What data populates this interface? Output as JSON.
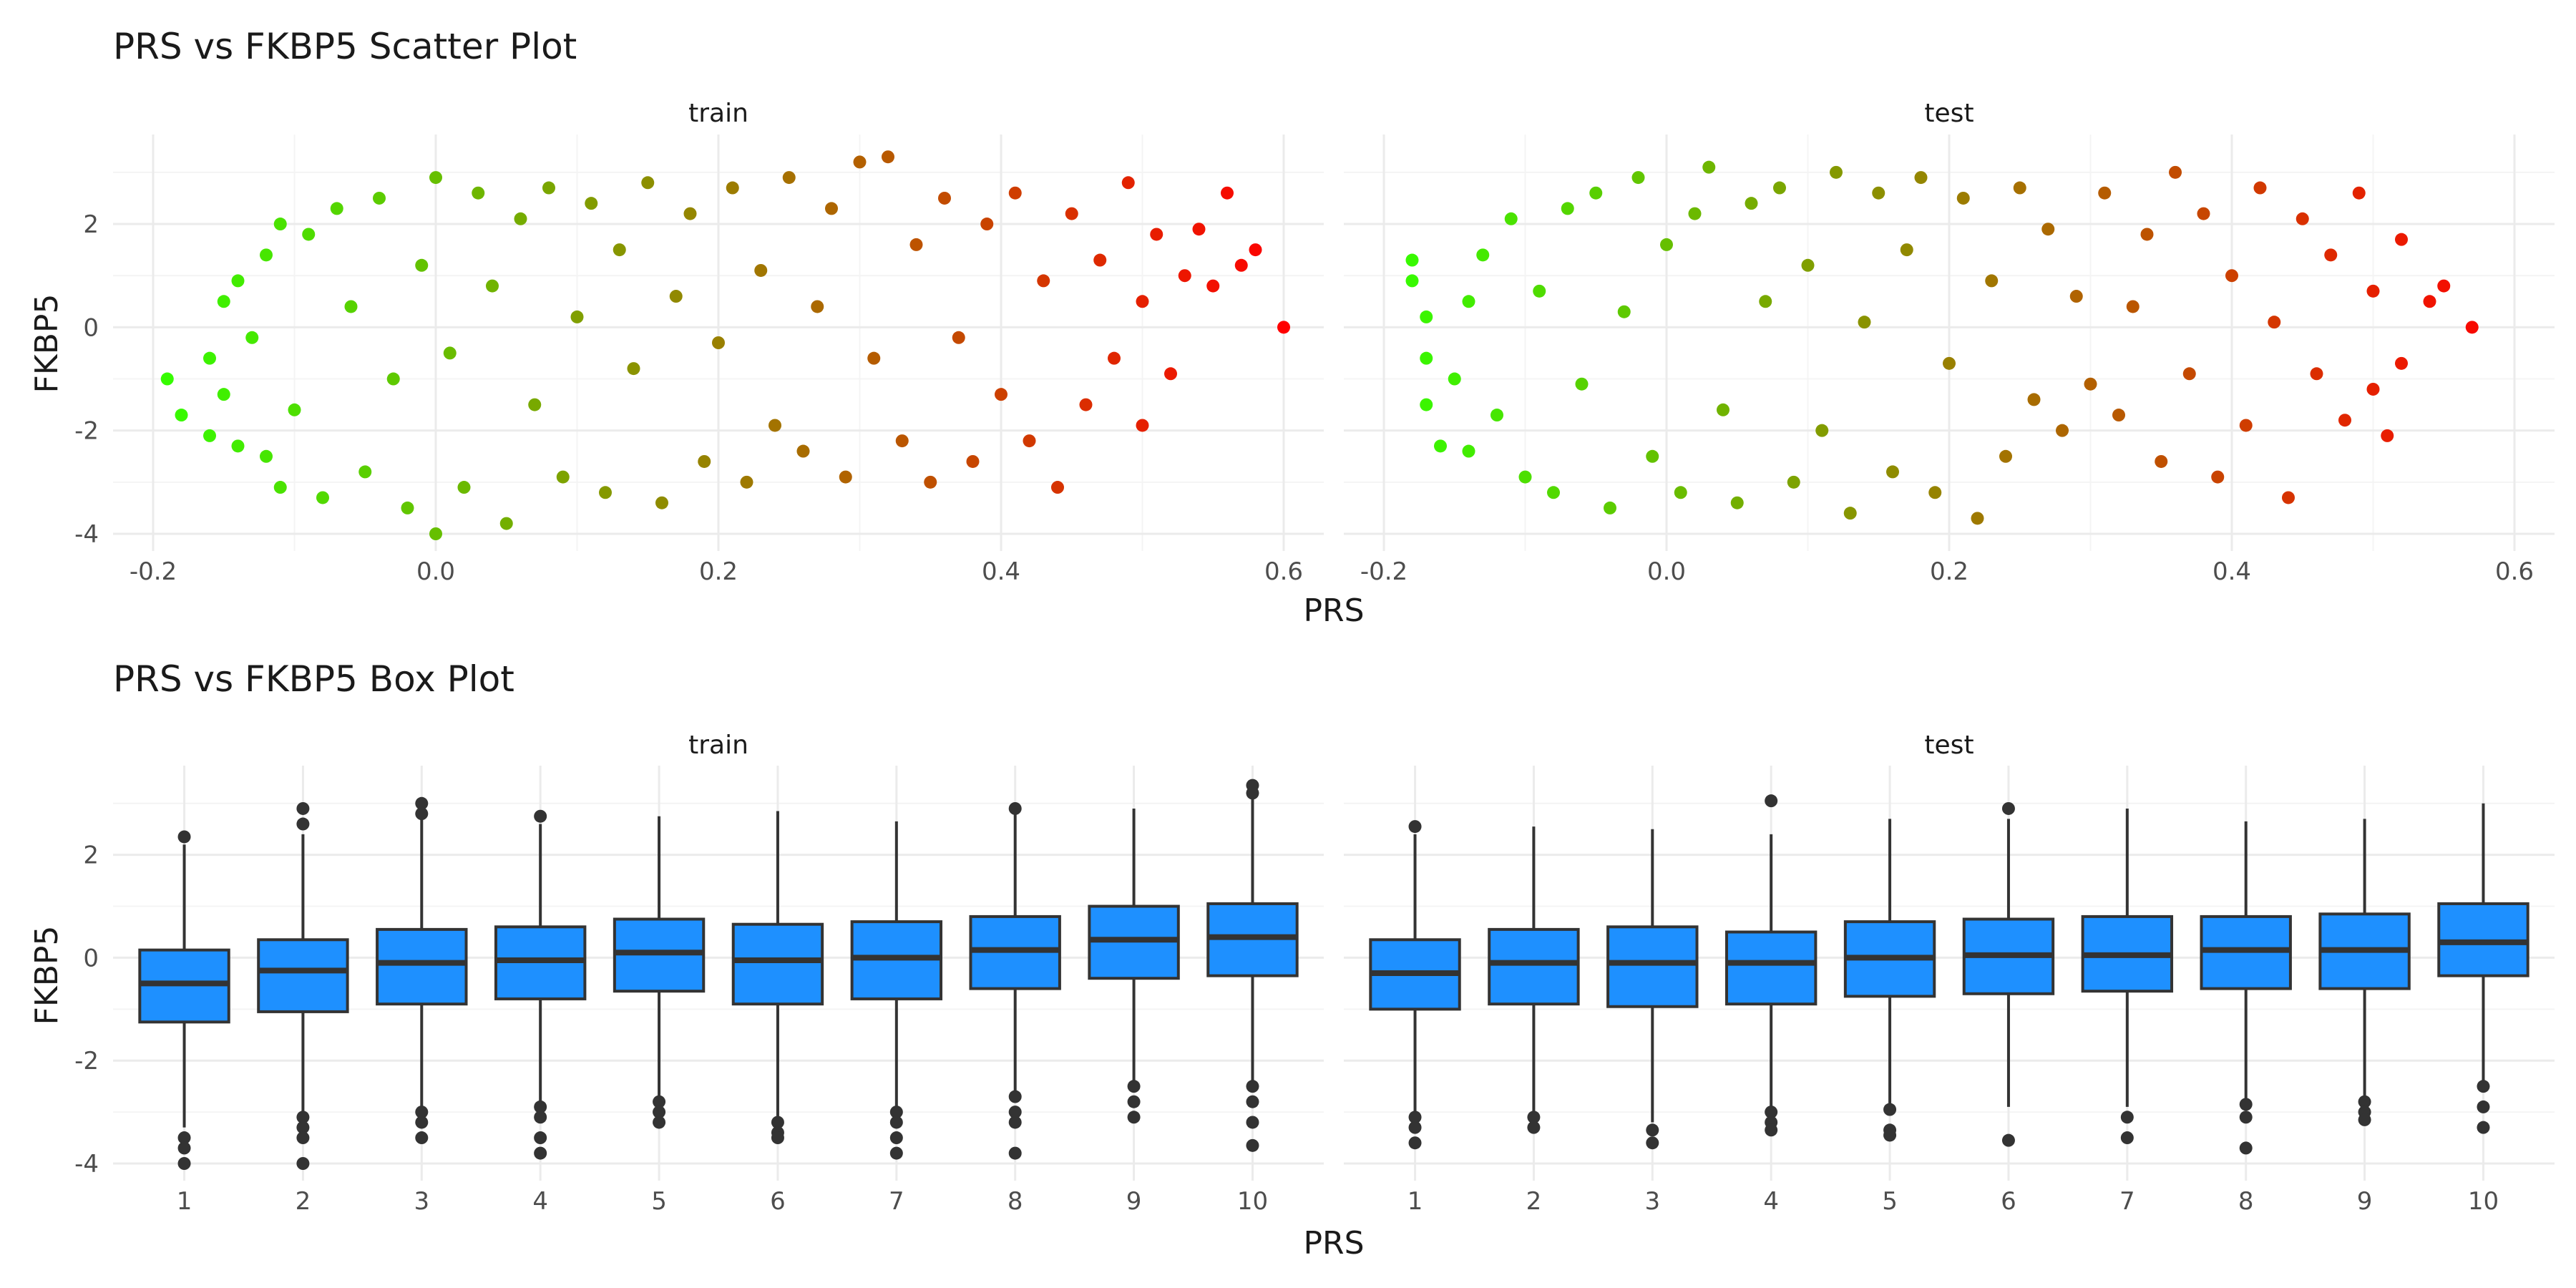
{
  "chart_data": [
    {
      "type": "scatter",
      "title": "PRS vs FKBP5 Scatter Plot",
      "xlabel": "PRS",
      "ylabel": "FKBP5",
      "xlim": [
        -0.2,
        0.6
      ],
      "ylim": [
        -4,
        3.4
      ],
      "xticks": [
        "-0.2",
        "0.0",
        "0.2",
        "0.4",
        "0.6"
      ],
      "yticks": [
        "-4",
        "-2",
        "0",
        "2"
      ],
      "grid": true,
      "color_gradient": [
        "#33ff00",
        "#ff0000"
      ],
      "facets": [
        {
          "name": "train",
          "points": [
            [
              -0.19,
              -1.0
            ],
            [
              -0.18,
              -1.7
            ],
            [
              -0.16,
              -0.6
            ],
            [
              -0.16,
              -2.1
            ],
            [
              -0.15,
              0.5
            ],
            [
              -0.15,
              -1.3
            ],
            [
              -0.14,
              0.9
            ],
            [
              -0.14,
              -2.3
            ],
            [
              -0.13,
              -0.2
            ],
            [
              -0.12,
              1.4
            ],
            [
              -0.12,
              -2.5
            ],
            [
              -0.11,
              2.0
            ],
            [
              -0.11,
              -3.1
            ],
            [
              -0.1,
              -1.6
            ],
            [
              -0.09,
              1.8
            ],
            [
              -0.08,
              -3.3
            ],
            [
              -0.07,
              2.3
            ],
            [
              -0.06,
              0.4
            ],
            [
              -0.05,
              -2.8
            ],
            [
              -0.04,
              2.5
            ],
            [
              -0.03,
              -1.0
            ],
            [
              -0.02,
              -3.5
            ],
            [
              -0.01,
              1.2
            ],
            [
              0.0,
              2.9
            ],
            [
              0.0,
              -4.0
            ],
            [
              0.01,
              -0.5
            ],
            [
              0.02,
              -3.1
            ],
            [
              0.03,
              2.6
            ],
            [
              0.04,
              0.8
            ],
            [
              0.05,
              -3.8
            ],
            [
              0.06,
              2.1
            ],
            [
              0.07,
              -1.5
            ],
            [
              0.08,
              2.7
            ],
            [
              0.09,
              -2.9
            ],
            [
              0.1,
              0.2
            ],
            [
              0.11,
              2.4
            ],
            [
              0.12,
              -3.2
            ],
            [
              0.13,
              1.5
            ],
            [
              0.14,
              -0.8
            ],
            [
              0.15,
              2.8
            ],
            [
              0.16,
              -3.4
            ],
            [
              0.17,
              0.6
            ],
            [
              0.18,
              2.2
            ],
            [
              0.19,
              -2.6
            ],
            [
              0.2,
              -0.3
            ],
            [
              0.21,
              2.7
            ],
            [
              0.22,
              -3.0
            ],
            [
              0.23,
              1.1
            ],
            [
              0.24,
              -1.9
            ],
            [
              0.25,
              2.9
            ],
            [
              0.26,
              -2.4
            ],
            [
              0.27,
              0.4
            ],
            [
              0.28,
              2.3
            ],
            [
              0.29,
              -2.9
            ],
            [
              0.3,
              3.2
            ],
            [
              0.31,
              -0.6
            ],
            [
              0.32,
              3.3
            ],
            [
              0.33,
              -2.2
            ],
            [
              0.34,
              1.6
            ],
            [
              0.35,
              -3.0
            ],
            [
              0.36,
              2.5
            ],
            [
              0.37,
              -0.2
            ],
            [
              0.38,
              -2.6
            ],
            [
              0.39,
              2.0
            ],
            [
              0.4,
              -1.3
            ],
            [
              0.41,
              2.6
            ],
            [
              0.42,
              -2.2
            ],
            [
              0.43,
              0.9
            ],
            [
              0.44,
              -3.1
            ],
            [
              0.45,
              2.2
            ],
            [
              0.46,
              -1.5
            ],
            [
              0.47,
              1.3
            ],
            [
              0.48,
              -0.6
            ],
            [
              0.49,
              2.8
            ],
            [
              0.5,
              -1.9
            ],
            [
              0.5,
              0.5
            ],
            [
              0.51,
              1.8
            ],
            [
              0.52,
              -0.9
            ],
            [
              0.53,
              1.0
            ],
            [
              0.54,
              1.9
            ],
            [
              0.55,
              0.8
            ],
            [
              0.56,
              2.6
            ],
            [
              0.57,
              1.2
            ],
            [
              0.58,
              1.5
            ],
            [
              0.6,
              0.0
            ]
          ]
        },
        {
          "name": "test",
          "points": [
            [
              -0.18,
              1.3
            ],
            [
              -0.18,
              0.9
            ],
            [
              -0.17,
              0.2
            ],
            [
              -0.17,
              -0.6
            ],
            [
              -0.17,
              -1.5
            ],
            [
              -0.16,
              -2.3
            ],
            [
              -0.15,
              -1.0
            ],
            [
              -0.14,
              0.5
            ],
            [
              -0.14,
              -2.4
            ],
            [
              -0.13,
              1.4
            ],
            [
              -0.12,
              -1.7
            ],
            [
              -0.11,
              2.1
            ],
            [
              -0.1,
              -2.9
            ],
            [
              -0.09,
              0.7
            ],
            [
              -0.08,
              -3.2
            ],
            [
              -0.07,
              2.3
            ],
            [
              -0.06,
              -1.1
            ],
            [
              -0.05,
              2.6
            ],
            [
              -0.04,
              -3.5
            ],
            [
              -0.03,
              0.3
            ],
            [
              -0.02,
              2.9
            ],
            [
              -0.01,
              -2.5
            ],
            [
              0.0,
              1.6
            ],
            [
              0.01,
              -3.2
            ],
            [
              0.02,
              2.2
            ],
            [
              0.03,
              3.1
            ],
            [
              0.04,
              -1.6
            ],
            [
              0.05,
              -3.4
            ],
            [
              0.06,
              2.4
            ],
            [
              0.07,
              0.5
            ],
            [
              0.08,
              2.7
            ],
            [
              0.09,
              -3.0
            ],
            [
              0.1,
              1.2
            ],
            [
              0.11,
              -2.0
            ],
            [
              0.12,
              3.0
            ],
            [
              0.13,
              -3.6
            ],
            [
              0.14,
              0.1
            ],
            [
              0.15,
              2.6
            ],
            [
              0.16,
              -2.8
            ],
            [
              0.17,
              1.5
            ],
            [
              0.18,
              2.9
            ],
            [
              0.19,
              -3.2
            ],
            [
              0.2,
              -0.7
            ],
            [
              0.21,
              2.5
            ],
            [
              0.22,
              -3.7
            ],
            [
              0.23,
              0.9
            ],
            [
              0.24,
              -2.5
            ],
            [
              0.25,
              2.7
            ],
            [
              0.26,
              -1.4
            ],
            [
              0.27,
              1.9
            ],
            [
              0.28,
              -2.0
            ],
            [
              0.29,
              0.6
            ],
            [
              0.3,
              -1.1
            ],
            [
              0.31,
              2.6
            ],
            [
              0.32,
              -1.7
            ],
            [
              0.33,
              0.4
            ],
            [
              0.34,
              1.8
            ],
            [
              0.35,
              -2.6
            ],
            [
              0.36,
              3.0
            ],
            [
              0.37,
              -0.9
            ],
            [
              0.38,
              2.2
            ],
            [
              0.39,
              -2.9
            ],
            [
              0.4,
              1.0
            ],
            [
              0.41,
              -1.9
            ],
            [
              0.42,
              2.7
            ],
            [
              0.43,
              0.1
            ],
            [
              0.44,
              -3.3
            ],
            [
              0.45,
              2.1
            ],
            [
              0.46,
              -0.9
            ],
            [
              0.47,
              1.4
            ],
            [
              0.48,
              -1.8
            ],
            [
              0.49,
              2.6
            ],
            [
              0.5,
              -1.2
            ],
            [
              0.5,
              0.7
            ],
            [
              0.51,
              -2.1
            ],
            [
              0.52,
              1.7
            ],
            [
              0.52,
              -0.7
            ],
            [
              0.54,
              0.5
            ],
            [
              0.55,
              0.8
            ],
            [
              0.57,
              0.0
            ]
          ]
        }
      ]
    },
    {
      "type": "box",
      "title": "PRS vs FKBP5 Box Plot",
      "xlabel": "PRS",
      "ylabel": "FKBP5",
      "ylim": [
        -4,
        3.4
      ],
      "yticks": [
        "-4",
        "-2",
        "0",
        "2"
      ],
      "categories": [
        "1",
        "2",
        "3",
        "4",
        "5",
        "6",
        "7",
        "8",
        "9",
        "10"
      ],
      "grid": true,
      "box_color": "#1e90ff",
      "facets": [
        {
          "name": "train",
          "boxes": [
            {
              "q1": -1.25,
              "median": -0.5,
              "q3": 0.15,
              "whisker_low": -3.3,
              "whisker_high": 2.2,
              "outliers": [
                2.35,
                -3.5,
                -3.7,
                -4.0
              ]
            },
            {
              "q1": -1.05,
              "median": -0.25,
              "q3": 0.35,
              "whisker_low": -3.0,
              "whisker_high": 2.4,
              "outliers": [
                2.6,
                2.9,
                -3.1,
                -3.3,
                -3.5,
                -4.0
              ]
            },
            {
              "q1": -0.9,
              "median": -0.1,
              "q3": 0.55,
              "whisker_low": -2.9,
              "whisker_high": 2.7,
              "outliers": [
                2.8,
                3.0,
                -3.0,
                -3.2,
                -3.5
              ]
            },
            {
              "q1": -0.8,
              "median": -0.05,
              "q3": 0.6,
              "whisker_low": -2.8,
              "whisker_high": 2.6,
              "outliers": [
                2.75,
                -2.9,
                -3.1,
                -3.5,
                -3.8
              ]
            },
            {
              "q1": -0.65,
              "median": 0.1,
              "q3": 0.75,
              "whisker_low": -2.7,
              "whisker_high": 2.75,
              "outliers": [
                -2.8,
                -3.0,
                -3.2
              ]
            },
            {
              "q1": -0.9,
              "median": -0.05,
              "q3": 0.65,
              "whisker_low": -3.1,
              "whisker_high": 2.85,
              "outliers": [
                -3.2,
                -3.4,
                -3.5
              ]
            },
            {
              "q1": -0.8,
              "median": 0.0,
              "q3": 0.7,
              "whisker_low": -2.9,
              "whisker_high": 2.65,
              "outliers": [
                -3.0,
                -3.2,
                -3.5,
                -3.8
              ]
            },
            {
              "q1": -0.6,
              "median": 0.15,
              "q3": 0.8,
              "whisker_low": -2.6,
              "whisker_high": 2.8,
              "outliers": [
                2.9,
                -2.7,
                -3.0,
                -3.2,
                -3.8
              ]
            },
            {
              "q1": -0.4,
              "median": 0.35,
              "q3": 1.0,
              "whisker_low": -2.4,
              "whisker_high": 2.9,
              "outliers": [
                -2.5,
                -2.8,
                -3.1
              ]
            },
            {
              "q1": -0.35,
              "median": 0.4,
              "q3": 1.05,
              "whisker_low": -2.4,
              "whisker_high": 3.1,
              "outliers": [
                3.2,
                3.35,
                -2.5,
                -2.8,
                -3.2,
                -3.65
              ]
            }
          ]
        },
        {
          "name": "test",
          "boxes": [
            {
              "q1": -1.0,
              "median": -0.3,
              "q3": 0.35,
              "whisker_low": -3.0,
              "whisker_high": 2.4,
              "outliers": [
                2.55,
                -3.1,
                -3.3,
                -3.6
              ]
            },
            {
              "q1": -0.9,
              "median": -0.1,
              "q3": 0.55,
              "whisker_low": -3.0,
              "whisker_high": 2.55,
              "outliers": [
                -3.1,
                -3.3
              ]
            },
            {
              "q1": -0.95,
              "median": -0.1,
              "q3": 0.6,
              "whisker_low": -3.2,
              "whisker_high": 2.5,
              "outliers": [
                -3.35,
                -3.6
              ]
            },
            {
              "q1": -0.9,
              "median": -0.1,
              "q3": 0.5,
              "whisker_low": -2.9,
              "whisker_high": 2.4,
              "outliers": [
                3.05,
                -3.0,
                -3.2,
                -3.35
              ]
            },
            {
              "q1": -0.75,
              "median": 0.0,
              "q3": 0.7,
              "whisker_low": -2.9,
              "whisker_high": 2.7,
              "outliers": [
                -2.95,
                -3.35,
                -3.45
              ]
            },
            {
              "q1": -0.7,
              "median": 0.05,
              "q3": 0.75,
              "whisker_low": -2.9,
              "whisker_high": 2.7,
              "outliers": [
                2.9,
                -3.55
              ]
            },
            {
              "q1": -0.65,
              "median": 0.05,
              "q3": 0.8,
              "whisker_low": -2.9,
              "whisker_high": 2.9,
              "outliers": [
                -3.1,
                -3.5
              ]
            },
            {
              "q1": -0.6,
              "median": 0.15,
              "q3": 0.8,
              "whisker_low": -2.8,
              "whisker_high": 2.65,
              "outliers": [
                -2.85,
                -3.1,
                -3.7
              ]
            },
            {
              "q1": -0.6,
              "median": 0.15,
              "q3": 0.85,
              "whisker_low": -2.7,
              "whisker_high": 2.7,
              "outliers": [
                -2.8,
                -3.0,
                -3.15
              ]
            },
            {
              "q1": -0.35,
              "median": 0.3,
              "q3": 1.05,
              "whisker_low": -2.4,
              "whisker_high": 3.0,
              "outliers": [
                -2.5,
                -2.9,
                -3.3
              ]
            }
          ]
        }
      ]
    }
  ]
}
